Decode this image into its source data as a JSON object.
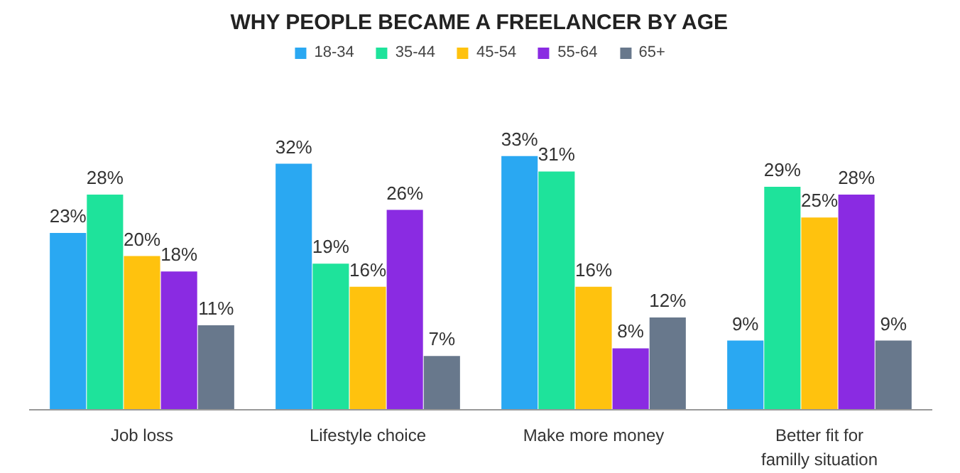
{
  "chart_data": {
    "type": "bar",
    "title": "WHY PEOPLE BECAME A FREELANCER BY AGE",
    "categories": [
      "Job loss",
      "Lifestyle choice",
      "Make more money",
      "Better fit for\nfamilly situation"
    ],
    "series": [
      {
        "name": "18-34",
        "color": "#2aa8f2",
        "values": [
          23,
          32,
          33,
          9
        ],
        "value_labels": [
          "23%",
          "32%",
          "33%",
          "9%"
        ]
      },
      {
        "name": "35-44",
        "color": "#1ee39b",
        "values": [
          28,
          19,
          31,
          29
        ],
        "value_labels": [
          "28%",
          "19%",
          "31%",
          "29%"
        ]
      },
      {
        "name": "45-54",
        "color": "#ffc20e",
        "values": [
          20,
          16,
          16,
          25
        ],
        "value_labels": [
          "20%",
          "16%",
          "16%",
          "25%"
        ]
      },
      {
        "name": "55-64",
        "color": "#8a2be2",
        "values": [
          18,
          26,
          8,
          28
        ],
        "value_labels": [
          "18%",
          "26%",
          "8%",
          "28%"
        ]
      },
      {
        "name": "65+",
        "color": "#68788c",
        "values": [
          11,
          7,
          12,
          9
        ],
        "value_labels": [
          "11%",
          "7%",
          "12%",
          "9%"
        ]
      }
    ],
    "legend": "top",
    "grid": false
  }
}
